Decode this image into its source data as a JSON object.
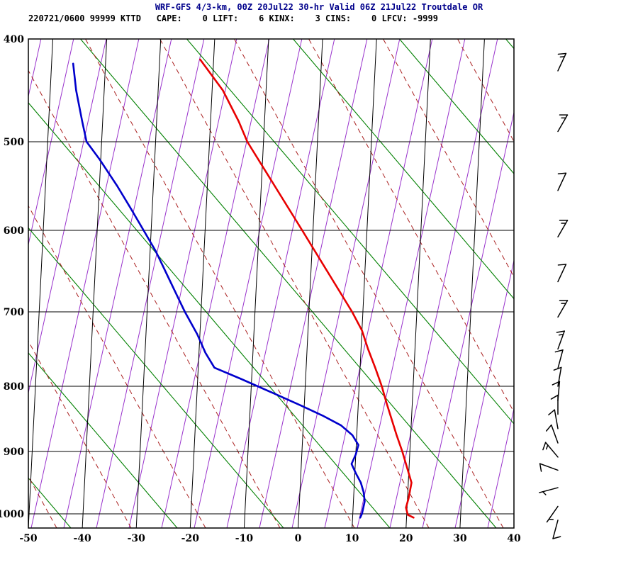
{
  "header": {
    "title": "WRF-GFS 4/3-km, 00Z 20Jul22 30-hr Valid 06Z 21Jul22 Troutdale OR",
    "info_line": "220721/0600 99999 KTTD   CAPE:    0 LIFT:    6 KINX:    3 CINS:    0 LFCV: -9999"
  },
  "chart_data": {
    "type": "line",
    "diagram": "skew-t-log-p-sounding",
    "title": "WRF-GFS 4/3-km, 00Z 20Jul22 30-hr Valid 06Z 21Jul22 Troutdale OR",
    "station": {
      "id": "KTTD",
      "name": "Troutdale OR",
      "datetime": "220721/0600",
      "wmo": "99999"
    },
    "indices": {
      "CAPE": 0,
      "LIFT": 6,
      "KINX": 3,
      "CINS": 0,
      "LFCV": -9999
    },
    "x_axis": {
      "ticks": [
        -50,
        -40,
        -30,
        -20,
        -10,
        0,
        10,
        20,
        30,
        40
      ],
      "units": "degC"
    },
    "y_axis": {
      "ticks": [
        400,
        500,
        600,
        700,
        800,
        900,
        1000
      ],
      "units": "hPa",
      "scale": "pressure"
    },
    "grid": {
      "isotherm_color": "#000000",
      "dry_adiabat_color": "#008000",
      "moist_adiabat_color": "#aa2020",
      "mixing_ratio_color": "#9932cc"
    },
    "series": [
      {
        "name": "temperature",
        "color": "#e80000",
        "units": "degC",
        "points": [
          [
            420,
            -22.5
          ],
          [
            450,
            -18
          ],
          [
            480,
            -14.8
          ],
          [
            500,
            -13
          ],
          [
            550,
            -7.5
          ],
          [
            600,
            -2
          ],
          [
            650,
            3
          ],
          [
            700,
            8
          ],
          [
            725,
            10
          ],
          [
            750,
            11.3
          ],
          [
            775,
            12.8
          ],
          [
            800,
            14.2
          ],
          [
            825,
            15.2
          ],
          [
            850,
            16.3
          ],
          [
            875,
            17.4
          ],
          [
            900,
            18.6
          ],
          [
            925,
            19.6
          ],
          [
            950,
            20.6
          ],
          [
            975,
            20.2
          ],
          [
            990,
            19.8
          ],
          [
            1003,
            20.2
          ],
          [
            1012,
            21.3
          ]
        ]
      },
      {
        "name": "dewpoint",
        "color": "#0000cc",
        "units": "degC",
        "points": [
          [
            424,
            -46
          ],
          [
            450,
            -45.2
          ],
          [
            480,
            -43.8
          ],
          [
            500,
            -42.8
          ],
          [
            520,
            -40.2
          ],
          [
            550,
            -36.7
          ],
          [
            575,
            -34
          ],
          [
            600,
            -31.4
          ],
          [
            625,
            -29
          ],
          [
            650,
            -27
          ],
          [
            675,
            -25
          ],
          [
            700,
            -23
          ],
          [
            730,
            -20.5
          ],
          [
            755,
            -18.8
          ],
          [
            775,
            -17
          ],
          [
            790,
            -12
          ],
          [
            810,
            -6
          ],
          [
            830,
            -0.5
          ],
          [
            845,
            3.5
          ],
          [
            860,
            7
          ],
          [
            875,
            9.2
          ],
          [
            890,
            10.4
          ],
          [
            905,
            10
          ],
          [
            920,
            9.3
          ],
          [
            935,
            10.2
          ],
          [
            950,
            11.2
          ],
          [
            965,
            11.8
          ],
          [
            980,
            12.1
          ],
          [
            1000,
            11.7
          ],
          [
            1012,
            11.4
          ]
        ]
      }
    ],
    "wind_barbs": {
      "units": "kt",
      "levels": [
        {
          "p": 431,
          "dir": 25,
          "speed": 15
        },
        {
          "p": 490,
          "dir": 30,
          "speed": 15
        },
        {
          "p": 555,
          "dir": 25,
          "speed": 10
        },
        {
          "p": 608,
          "dir": 30,
          "speed": 15
        },
        {
          "p": 663,
          "dir": 25,
          "speed": 10
        },
        {
          "p": 707,
          "dir": 30,
          "speed": 15
        },
        {
          "p": 750,
          "dir": 20,
          "speed": 15
        },
        {
          "p": 776,
          "dir": 15,
          "speed": 10
        },
        {
          "p": 800,
          "dir": 10,
          "speed": 10
        },
        {
          "p": 822,
          "dir": 5,
          "speed": 10
        },
        {
          "p": 843,
          "dir": 0,
          "speed": 10
        },
        {
          "p": 865,
          "dir": 350,
          "speed": 10
        },
        {
          "p": 887,
          "dir": 340,
          "speed": 10
        },
        {
          "p": 909,
          "dir": 320,
          "speed": 15
        },
        {
          "p": 930,
          "dir": 290,
          "speed": 10
        },
        {
          "p": 958,
          "dir": 255,
          "speed": 5
        },
        {
          "p": 988,
          "dir": 215,
          "speed": 5
        },
        {
          "p": 1020,
          "dir": 195,
          "speed": 10
        }
      ]
    }
  }
}
